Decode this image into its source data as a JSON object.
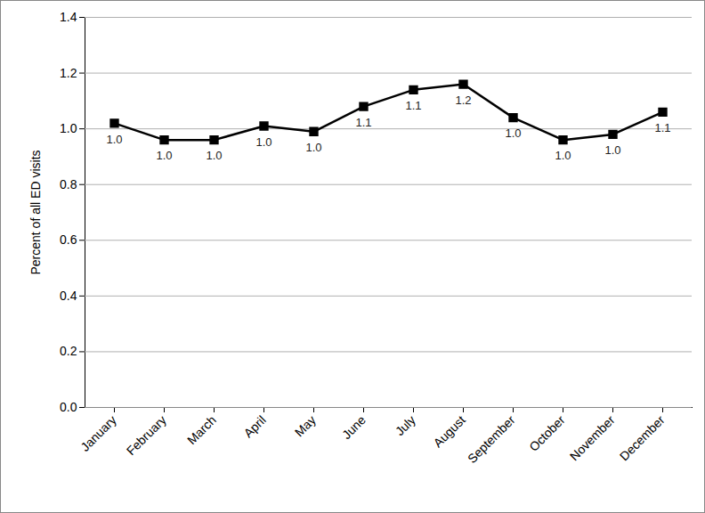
{
  "chart_data": {
    "type": "line",
    "ylabel": "Percent of all ED visits",
    "categories": [
      "January",
      "February",
      "March",
      "April",
      "May",
      "June",
      "July",
      "August",
      "September",
      "October",
      "November",
      "December"
    ],
    "values": [
      1.02,
      0.96,
      0.96,
      1.01,
      0.99,
      1.08,
      1.14,
      1.16,
      1.04,
      0.96,
      0.98,
      1.06
    ],
    "value_labels": [
      "1.0",
      "1.0",
      "1.0",
      "1.0",
      "1.0",
      "1.1",
      "1.1",
      "1.2",
      "1.0",
      "1.0",
      "1.0",
      "1.1"
    ],
    "data_labels": true,
    "color": "#000000",
    "marker": "square",
    "line_style": "solid",
    "ylim": [
      0,
      1.4
    ],
    "yticks": [
      {
        "value": 0,
        "label": "0.0"
      },
      0.2,
      0.4,
      0.6,
      0.8,
      {
        "value": 1,
        "label": "1.0"
      },
      1.2,
      1.4
    ],
    "grid": true
  }
}
